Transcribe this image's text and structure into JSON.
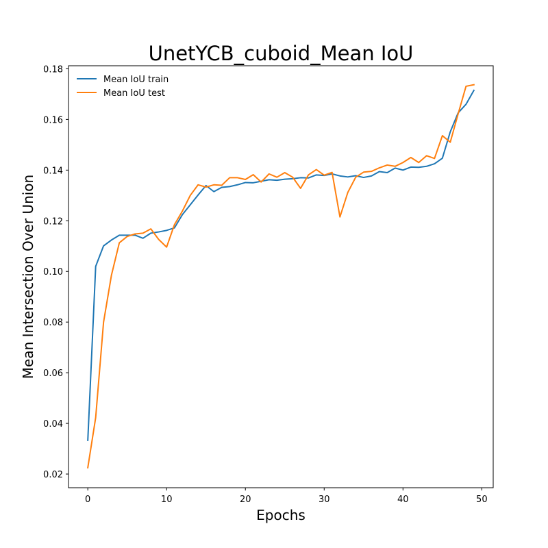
{
  "chart_data": {
    "type": "line",
    "title": "UnetYCB_cuboid_Mean IoU",
    "xlabel": "Epochs",
    "ylabel": "Mean Intersection Over Union",
    "xlim": [
      -2.45,
      51.45
    ],
    "ylim": [
      0.0146,
      0.1812
    ],
    "xticks": [
      0,
      10,
      20,
      30,
      40,
      50
    ],
    "yticks": [
      0.02,
      0.04,
      0.06,
      0.08,
      0.1,
      0.12,
      0.14,
      0.16,
      0.18
    ],
    "ytick_labels": [
      "0.02",
      "0.04",
      "0.06",
      "0.08",
      "0.10",
      "0.12",
      "0.14",
      "0.16",
      "0.18"
    ],
    "legend_position": "upper-left",
    "grid": false,
    "x": [
      0,
      1,
      2,
      3,
      4,
      5,
      6,
      7,
      8,
      9,
      10,
      11,
      12,
      13,
      14,
      15,
      16,
      17,
      18,
      19,
      20,
      21,
      22,
      23,
      24,
      25,
      26,
      27,
      28,
      29,
      30,
      31,
      32,
      33,
      34,
      35,
      36,
      37,
      38,
      39,
      40,
      41,
      42,
      43,
      44,
      45,
      46,
      47,
      48,
      49
    ],
    "series": [
      {
        "name": "Mean IoU train",
        "color": "#1f77b4",
        "values": [
          0.0333,
          0.102,
          0.1101,
          0.1124,
          0.1143,
          0.1143,
          0.1143,
          0.1131,
          0.1151,
          0.1156,
          0.1162,
          0.1172,
          0.1224,
          0.1263,
          0.1302,
          0.1339,
          0.1315,
          0.1332,
          0.1335,
          0.1342,
          0.1351,
          0.135,
          0.1356,
          0.1362,
          0.136,
          0.1364,
          0.1366,
          0.137,
          0.1369,
          0.1381,
          0.1379,
          0.1385,
          0.1377,
          0.1373,
          0.1378,
          0.1371,
          0.1377,
          0.1394,
          0.139,
          0.1408,
          0.14,
          0.1412,
          0.1411,
          0.1415,
          0.1425,
          0.1447,
          0.1551,
          0.1626,
          0.166,
          0.1715
        ]
      },
      {
        "name": "Mean IoU test",
        "color": "#ff7f0e",
        "values": [
          0.0225,
          0.0423,
          0.08,
          0.0985,
          0.1113,
          0.1138,
          0.1148,
          0.1151,
          0.1168,
          0.1126,
          0.1096,
          0.1185,
          0.1238,
          0.13,
          0.1342,
          0.1333,
          0.1342,
          0.134,
          0.137,
          0.137,
          0.1363,
          0.1382,
          0.1353,
          0.1385,
          0.1372,
          0.139,
          0.1372,
          0.1328,
          0.1381,
          0.1402,
          0.138,
          0.1391,
          0.1215,
          0.1312,
          0.1372,
          0.1392,
          0.1395,
          0.1409,
          0.142,
          0.1415,
          0.143,
          0.145,
          0.143,
          0.1457,
          0.1446,
          0.1536,
          0.151,
          0.1622,
          0.1731,
          0.1737
        ]
      }
    ]
  }
}
